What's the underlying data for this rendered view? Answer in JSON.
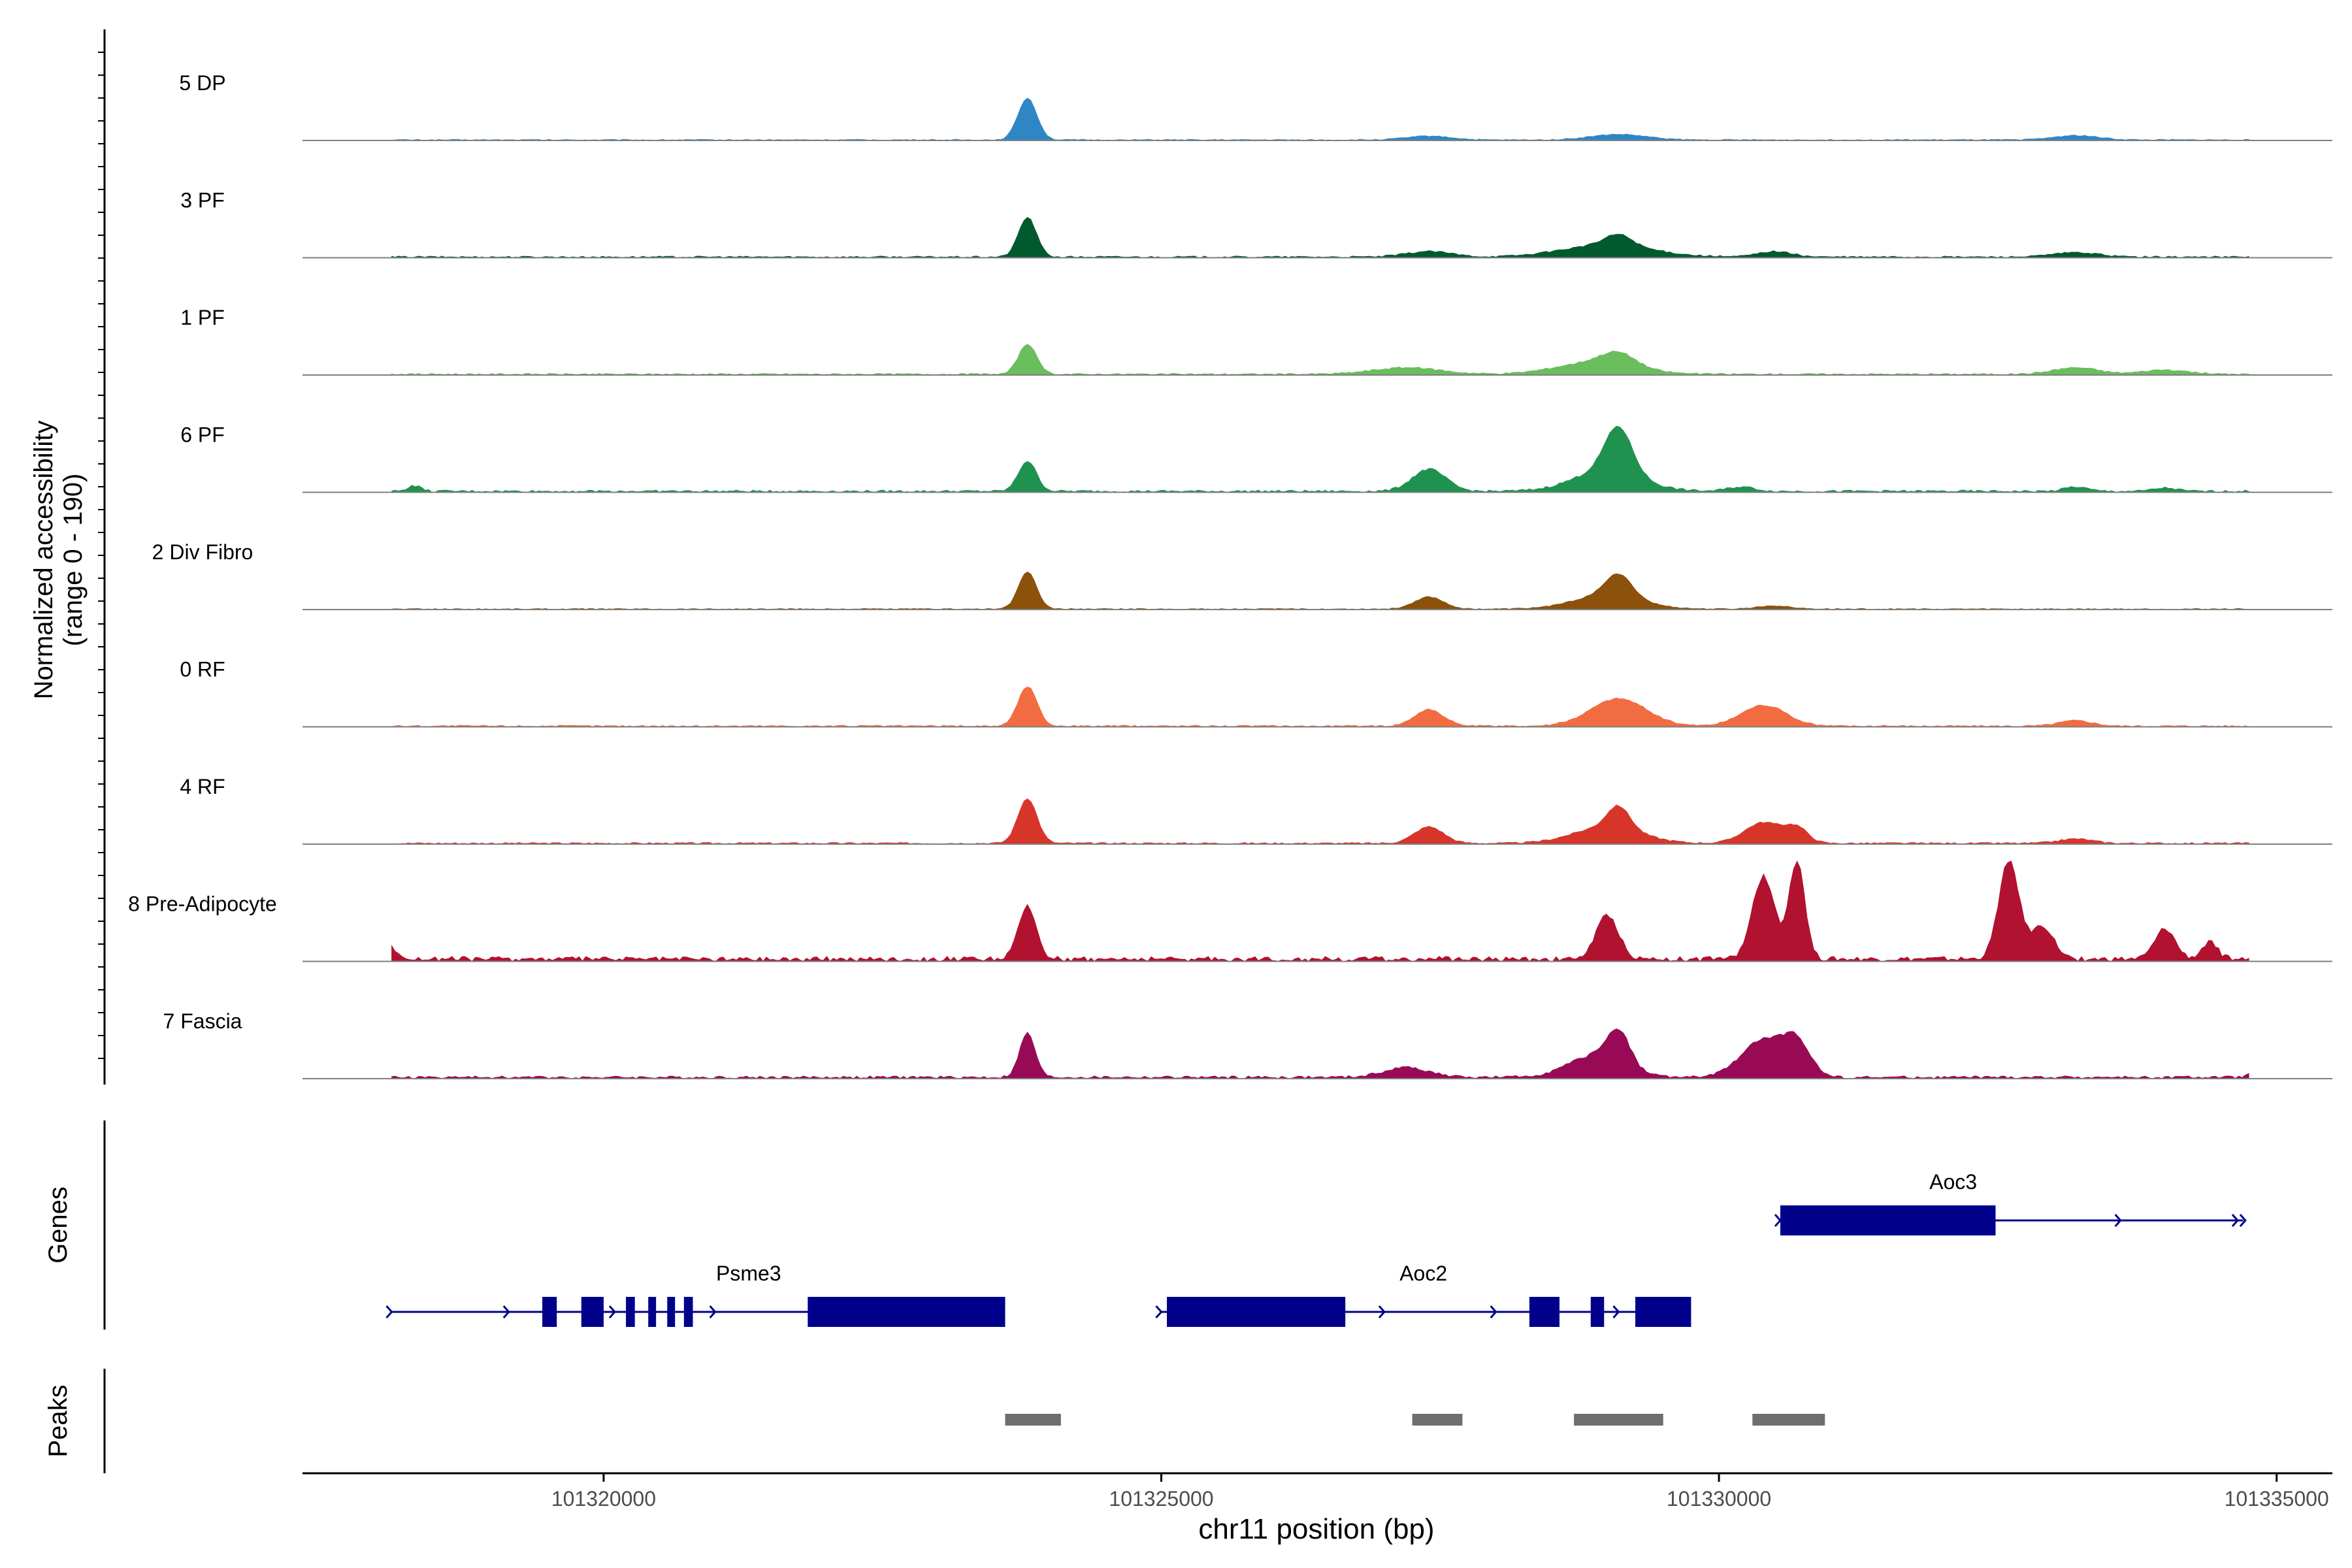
{
  "chart_data": {
    "type": "area",
    "title": "",
    "ylabel_line1": "Normalized accessibility",
    "ylabel_line2": "(range 0 - 190)",
    "xlabel": "chr11 position (bp)",
    "xlim": [
      101317300,
      101335500
    ],
    "ylim": [
      0,
      190
    ],
    "xticks": [
      101320000,
      101325000,
      101330000,
      101335000
    ],
    "xtick_labels": [
      "101320000",
      "101325000",
      "101330000",
      "101335000"
    ],
    "tracks": [
      {
        "name": "5 DP",
        "color": "#2f86c5",
        "noise": 2,
        "peaks": [
          [
            101323800,
            76,
            85
          ],
          [
            101327400,
            7,
            200
          ],
          [
            101329100,
            10,
            250
          ],
          [
            101333200,
            8,
            200
          ]
        ]
      },
      {
        "name": "3 PF",
        "color": "#005a2e",
        "noise": 3,
        "peaks": [
          [
            101323800,
            72,
            80
          ],
          [
            101327400,
            10,
            200
          ],
          [
            101329000,
            22,
            400
          ],
          [
            101329100,
            20,
            120
          ],
          [
            101330500,
            10,
            150
          ],
          [
            101333200,
            8,
            200
          ]
        ]
      },
      {
        "name": "1 PF",
        "color": "#6abe5d",
        "noise": 3,
        "peaks": [
          [
            101323800,
            55,
            80
          ],
          [
            101327200,
            12,
            300
          ],
          [
            101328900,
            22,
            350
          ],
          [
            101329100,
            22,
            150
          ],
          [
            101333200,
            12,
            200
          ],
          [
            101334000,
            8,
            200
          ]
        ]
      },
      {
        "name": "6 PF",
        "color": "#1f9250",
        "noise": 4,
        "peaks": [
          [
            101318300,
            10,
            60
          ],
          [
            101323800,
            55,
            80
          ],
          [
            101327400,
            40,
            150
          ],
          [
            101329000,
            38,
            300
          ],
          [
            101329100,
            82,
            120
          ],
          [
            101330200,
            8,
            120
          ],
          [
            101333200,
            8,
            100
          ],
          [
            101334000,
            6,
            100
          ]
        ]
      },
      {
        "name": "2 Div Fibro",
        "color": "#8c510b",
        "noise": 2,
        "peaks": [
          [
            101323800,
            68,
            80
          ],
          [
            101327400,
            22,
            130
          ],
          [
            101329000,
            25,
            300
          ],
          [
            101329100,
            40,
            120
          ],
          [
            101330500,
            6,
            150
          ]
        ]
      },
      {
        "name": "0 RF",
        "color": "#f26c42",
        "noise": 3,
        "peaks": [
          [
            101323800,
            72,
            85
          ],
          [
            101327400,
            30,
            130
          ],
          [
            101329100,
            50,
            250
          ],
          [
            101330400,
            38,
            200
          ],
          [
            101333200,
            10,
            150
          ]
        ]
      },
      {
        "name": "4 RF",
        "color": "#d8352a",
        "noise": 3,
        "peaks": [
          [
            101323800,
            82,
            85
          ],
          [
            101327400,
            30,
            130
          ],
          [
            101329000,
            30,
            300
          ],
          [
            101329100,
            40,
            100
          ],
          [
            101330400,
            38,
            170
          ],
          [
            101330700,
            25,
            100
          ],
          [
            101333200,
            8,
            150
          ]
        ]
      },
      {
        "name": "8 Pre-Adipocyte",
        "color": "#b0122f",
        "noise": 9,
        "peaks": [
          [
            101318100,
            20,
            60
          ],
          [
            101323800,
            95,
            80
          ],
          [
            101329000,
            80,
            100
          ],
          [
            101330400,
            150,
            100
          ],
          [
            101330700,
            180,
            70
          ],
          [
            101332600,
            180,
            90
          ],
          [
            101332900,
            60,
            100
          ],
          [
            101334000,
            55,
            90
          ],
          [
            101334400,
            30,
            70
          ]
        ]
      },
      {
        "name": "7 Fascia",
        "color": "#980a56",
        "noise": 5,
        "peaks": [
          [
            101323800,
            80,
            70
          ],
          [
            101327200,
            18,
            200
          ],
          [
            101328900,
            40,
            250
          ],
          [
            101329100,
            60,
            100
          ],
          [
            101330400,
            68,
            200
          ],
          [
            101330700,
            55,
            120
          ],
          [
            101334800,
            12,
            50
          ]
        ]
      }
    ],
    "genes": [
      {
        "name": "Psme3",
        "start": 101318100,
        "end": 101323600,
        "label_x": 101321300,
        "row": 2,
        "exons": [
          [
            101319450,
            101319580
          ],
          [
            101319800,
            101320000
          ],
          [
            101320200,
            101320280
          ],
          [
            101320400,
            101320470
          ],
          [
            101320570,
            101320640
          ],
          [
            101320720,
            101320800
          ],
          [
            101321830,
            101323600
          ]
        ],
        "arrows": [
          101318100,
          101319150,
          101320100,
          101321000
        ]
      },
      {
        "name": "Aoc2",
        "start": 101325000,
        "end": 101329750,
        "label_x": 101327350,
        "row": 2,
        "exons": [
          [
            101325050,
            101326650
          ],
          [
            101328300,
            101328570
          ],
          [
            101328850,
            101328970
          ],
          [
            101329250,
            101329750
          ]
        ],
        "arrows": [
          101325000,
          101327000,
          101328000,
          101329100
        ]
      },
      {
        "name": "Aoc3",
        "start": 101330550,
        "end": 101334700,
        "label_x": 101332100,
        "row": 1,
        "exons": [
          [
            101330550,
            101332480
          ]
        ],
        "arrows": [
          101330550,
          101333600,
          101334650,
          101334720
        ]
      }
    ],
    "peaks": [
      [
        101323600,
        101324100
      ],
      [
        101327250,
        101327700
      ],
      [
        101328700,
        101329500
      ],
      [
        101330300,
        101330950
      ]
    ],
    "panel_labels": {
      "genes": "Genes",
      "peaks": "Peaks"
    }
  }
}
